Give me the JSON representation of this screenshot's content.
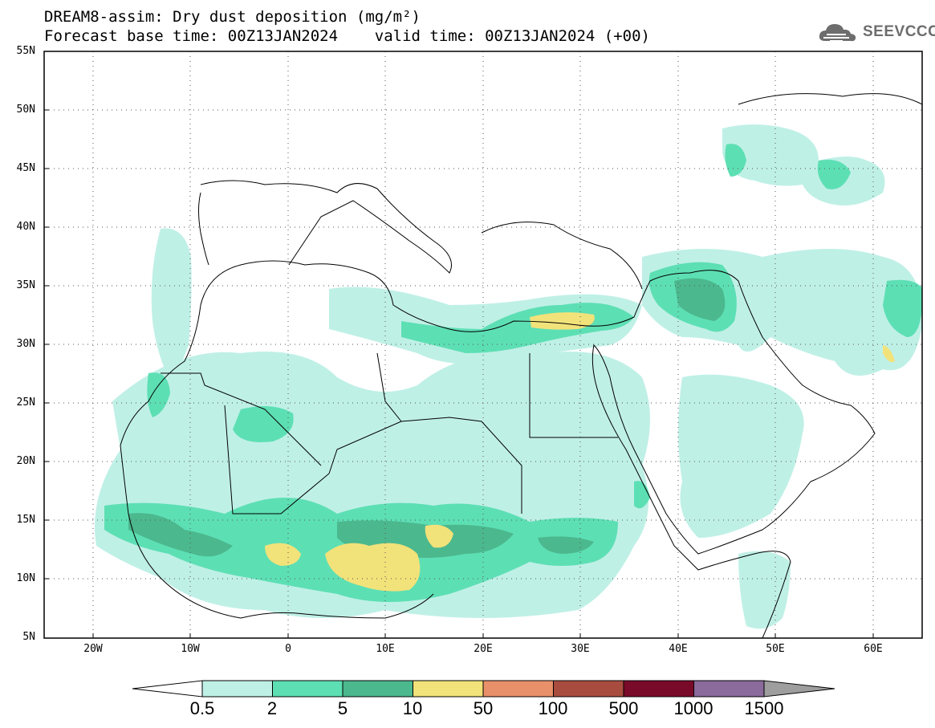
{
  "header": {
    "title_line1": "DREAM8-assim: Dry dust deposition (mg/m²)",
    "title_line2": "Forecast base time: 00Z13JAN2024    valid time: 00Z13JAN2024 (+00)",
    "logo_text": "SEEVCCC",
    "logo_icon": "cloud-icon"
  },
  "map": {
    "projection": "lat-lon",
    "lon_range": [
      -25,
      65
    ],
    "lat_range": [
      5,
      55
    ],
    "grid": true,
    "lat_labels": [
      "55N",
      "50N",
      "45N",
      "40N",
      "35N",
      "30N",
      "25N",
      "20N",
      "15N",
      "10N",
      "5N"
    ],
    "lon_labels": [
      "20W",
      "10W",
      "0",
      "10E",
      "20E",
      "30E",
      "40E",
      "50E",
      "60E"
    ]
  },
  "colorbar": {
    "labels": [
      "0.5",
      "2",
      "5",
      "10",
      "50",
      "100",
      "500",
      "1000",
      "1500"
    ],
    "colors": [
      "#bff0e6",
      "#5ddfb4",
      "#4cb88e",
      "#f2e27a",
      "#e8906a",
      "#a84c3f",
      "#7a0a2a",
      "#8b6a9c",
      "#9e9e9e"
    ]
  }
}
